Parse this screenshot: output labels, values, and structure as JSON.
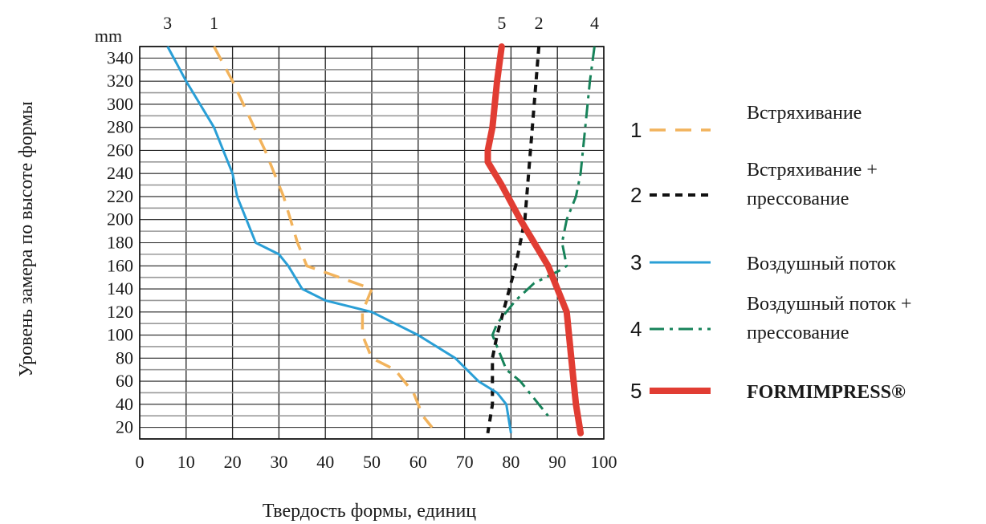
{
  "chart_data": {
    "type": "line",
    "xlabel": "Твердость формы, единиц",
    "ylabel": "Уровень замера по высоте формы",
    "y_unit": "mm",
    "xlim": [
      0,
      100
    ],
    "ylim": [
      10,
      350
    ],
    "x_ticks": [
      "0",
      "10",
      "20",
      "30",
      "40",
      "50",
      "60",
      "70",
      "80",
      "90",
      "100"
    ],
    "y_ticks": [
      "20",
      "40",
      "60",
      "80",
      "100",
      "120",
      "140",
      "160",
      "180",
      "200",
      "220",
      "240",
      "260",
      "280",
      "300",
      "320",
      "340"
    ],
    "grid": true,
    "legend_position": "right",
    "series": [
      {
        "id": "1",
        "name": "Встряхивание",
        "color": "#f2b35c",
        "style": "dashed",
        "top_label": "1",
        "points": [
          [
            16,
            350
          ],
          [
            20,
            320
          ],
          [
            27,
            260
          ],
          [
            31,
            220
          ],
          [
            34,
            180
          ],
          [
            36,
            160
          ],
          [
            43,
            150
          ],
          [
            50,
            140
          ],
          [
            48,
            120
          ],
          [
            48,
            100
          ],
          [
            50,
            80
          ],
          [
            55,
            70
          ],
          [
            59,
            50
          ],
          [
            61,
            30
          ],
          [
            63,
            20
          ]
        ]
      },
      {
        "id": "2",
        "name": "Встряхивание + прессование",
        "color": "#111111",
        "style": "short-dashed",
        "top_label": "2",
        "points": [
          [
            86,
            350
          ],
          [
            85,
            300
          ],
          [
            84,
            250
          ],
          [
            83,
            200
          ],
          [
            81,
            160
          ],
          [
            79,
            130
          ],
          [
            77,
            100
          ],
          [
            76,
            80
          ],
          [
            76,
            40
          ],
          [
            75,
            15
          ]
        ]
      },
      {
        "id": "3",
        "name": "Воздушный поток",
        "color": "#2a9fd6",
        "style": "solid",
        "top_label": "3",
        "points": [
          [
            6,
            350
          ],
          [
            10,
            320
          ],
          [
            16,
            280
          ],
          [
            20,
            240
          ],
          [
            21,
            220
          ],
          [
            23,
            200
          ],
          [
            25,
            180
          ],
          [
            30,
            170
          ],
          [
            32,
            160
          ],
          [
            35,
            140
          ],
          [
            40,
            130
          ],
          [
            50,
            120
          ],
          [
            60,
            100
          ],
          [
            68,
            80
          ],
          [
            73,
            60
          ],
          [
            77,
            50
          ],
          [
            79,
            40
          ],
          [
            80,
            15
          ]
        ]
      },
      {
        "id": "4",
        "name": "Воздушный поток + прессование",
        "color": "#17835a",
        "style": "dash-dot",
        "top_label": "4",
        "points": [
          [
            98,
            350
          ],
          [
            97,
            320
          ],
          [
            96,
            280
          ],
          [
            95,
            240
          ],
          [
            94,
            220
          ],
          [
            92,
            200
          ],
          [
            91,
            180
          ],
          [
            92,
            160
          ],
          [
            91,
            157
          ],
          [
            85,
            145
          ],
          [
            81,
            130
          ],
          [
            77,
            110
          ],
          [
            76,
            100
          ],
          [
            77,
            90
          ],
          [
            79,
            70
          ],
          [
            82,
            60
          ],
          [
            86,
            40
          ],
          [
            88,
            30
          ]
        ]
      },
      {
        "id": "5",
        "name": "FORMIMPRESS®",
        "color": "#e13d33",
        "style": "thick",
        "top_label": "5",
        "points": [
          [
            78,
            350
          ],
          [
            77,
            320
          ],
          [
            76,
            280
          ],
          [
            75,
            260
          ],
          [
            75,
            250
          ],
          [
            78,
            230
          ],
          [
            82,
            200
          ],
          [
            88,
            160
          ],
          [
            92,
            120
          ],
          [
            93,
            80
          ],
          [
            94,
            40
          ],
          [
            95,
            15
          ]
        ]
      }
    ]
  }
}
